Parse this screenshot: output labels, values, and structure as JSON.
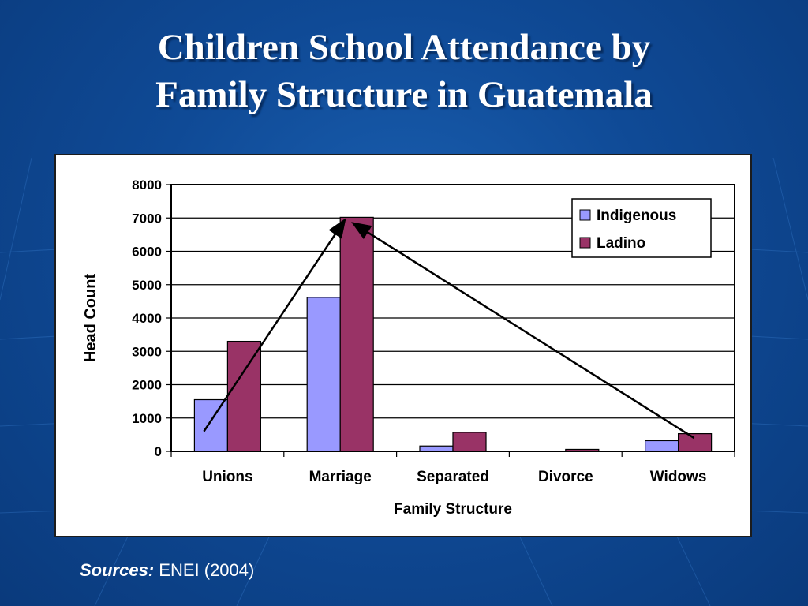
{
  "slide": {
    "title_line1": "Children School Attendance by",
    "title_line2": "Family Structure in Guatemala",
    "sources_label": "Sources:",
    "sources_text": "ENEI (2004)"
  },
  "colors": {
    "background": "#0f4a96",
    "indigenous": "#9999ff",
    "ladino": "#993366"
  },
  "chart_data": {
    "type": "bar",
    "categories": [
      "Unions",
      "Marriage",
      "Separated",
      "Divorce",
      "Widows"
    ],
    "series": [
      {
        "name": "Indigenous",
        "values": [
          1550,
          4620,
          160,
          0,
          320
        ]
      },
      {
        "name": "Ladino",
        "values": [
          3300,
          7020,
          570,
          60,
          530
        ]
      }
    ],
    "xlabel": "Family Structure",
    "ylabel": "Head Count",
    "ylim": [
      0,
      8000
    ],
    "yticks": [
      0,
      1000,
      2000,
      3000,
      4000,
      5000,
      6000,
      7000,
      8000
    ],
    "grid": true,
    "legend_position": "top-right",
    "annotations": [
      {
        "type": "arrow",
        "from": {
          "category": "Unions",
          "value": 600
        },
        "to": {
          "category": "Marriage",
          "value": 6950
        }
      },
      {
        "type": "arrow",
        "from": {
          "category": "Widows",
          "value": 400
        },
        "to": {
          "category": "Marriage",
          "value": 6850
        }
      }
    ]
  }
}
